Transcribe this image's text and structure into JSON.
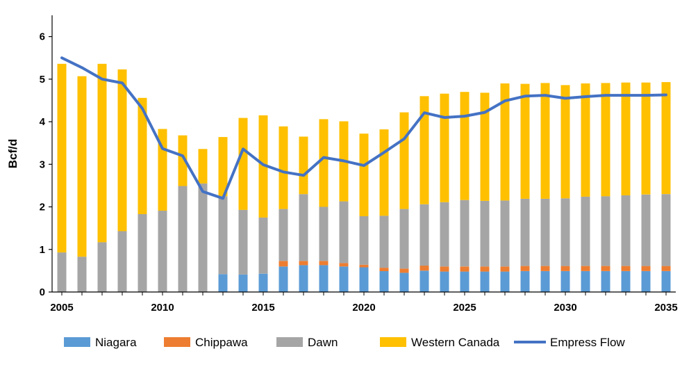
{
  "chart_data": {
    "type": "bar",
    "stacked": true,
    "ylabel": "Bcf/d",
    "xlabel": "",
    "ylim": [
      0,
      6.5
    ],
    "yticks": [
      0,
      1,
      2,
      3,
      4,
      5,
      6
    ],
    "xticks": [
      2005,
      2010,
      2015,
      2020,
      2025,
      2030,
      2035
    ],
    "grid": false,
    "legend_position": "bottom",
    "years": [
      2005,
      2006,
      2007,
      2008,
      2009,
      2010,
      2011,
      2012,
      2013,
      2014,
      2015,
      2016,
      2017,
      2018,
      2019,
      2020,
      2021,
      2022,
      2023,
      2024,
      2025,
      2026,
      2027,
      2028,
      2029,
      2030,
      2031,
      2032,
      2033,
      2034,
      2035
    ],
    "series": [
      {
        "name": "Niagara",
        "color": "#5B9BD5",
        "kind": "bar",
        "values": [
          0,
          0,
          0,
          0,
          0,
          0,
          0,
          0,
          0.42,
          0.41,
          0.43,
          0.6,
          0.63,
          0.63,
          0.6,
          0.58,
          0.49,
          0.45,
          0.5,
          0.48,
          0.48,
          0.48,
          0.48,
          0.49,
          0.49,
          0.49,
          0.49,
          0.49,
          0.49,
          0.49,
          0.49
        ]
      },
      {
        "name": "Chippawa",
        "color": "#ED7D31",
        "kind": "bar",
        "values": [
          0,
          0,
          0,
          0,
          0,
          0,
          0,
          0,
          0,
          0,
          0,
          0.13,
          0.1,
          0.1,
          0.08,
          0.06,
          0.08,
          0.1,
          0.12,
          0.12,
          0.12,
          0.12,
          0.12,
          0.12,
          0.12,
          0.12,
          0.12,
          0.12,
          0.12,
          0.12,
          0.12
        ]
      },
      {
        "name": "Dawn",
        "color": "#A5A5A5",
        "kind": "bar",
        "values": [
          0.93,
          0.83,
          1.17,
          1.43,
          1.83,
          1.91,
          2.49,
          2.55,
          1.83,
          1.52,
          1.32,
          1.22,
          1.57,
          1.27,
          1.45,
          1.14,
          1.22,
          1.4,
          1.44,
          1.51,
          1.56,
          1.54,
          1.55,
          1.58,
          1.58,
          1.59,
          1.63,
          1.64,
          1.66,
          1.68,
          1.69
        ]
      },
      {
        "name": "Western Canada",
        "color": "#FFC000",
        "kind": "bar",
        "values": [
          4.43,
          4.24,
          4.19,
          3.8,
          2.73,
          1.92,
          1.19,
          0.81,
          1.39,
          2.16,
          2.4,
          1.94,
          1.35,
          2.06,
          1.88,
          1.94,
          2.03,
          2.27,
          2.54,
          2.55,
          2.54,
          2.54,
          2.75,
          2.7,
          2.72,
          2.66,
          2.66,
          2.66,
          2.65,
          2.63,
          2.63
        ]
      },
      {
        "name": "Empress Flow",
        "color": "#4472C4",
        "kind": "line",
        "values": [
          5.5,
          5.27,
          5.0,
          4.91,
          4.31,
          3.37,
          3.2,
          2.36,
          2.2,
          3.36,
          2.99,
          2.82,
          2.74,
          3.16,
          3.08,
          2.97,
          3.28,
          3.6,
          4.21,
          4.1,
          4.13,
          4.22,
          4.49,
          4.6,
          4.62,
          4.55,
          4.59,
          4.62,
          4.62,
          4.62,
          4.63
        ]
      }
    ]
  }
}
